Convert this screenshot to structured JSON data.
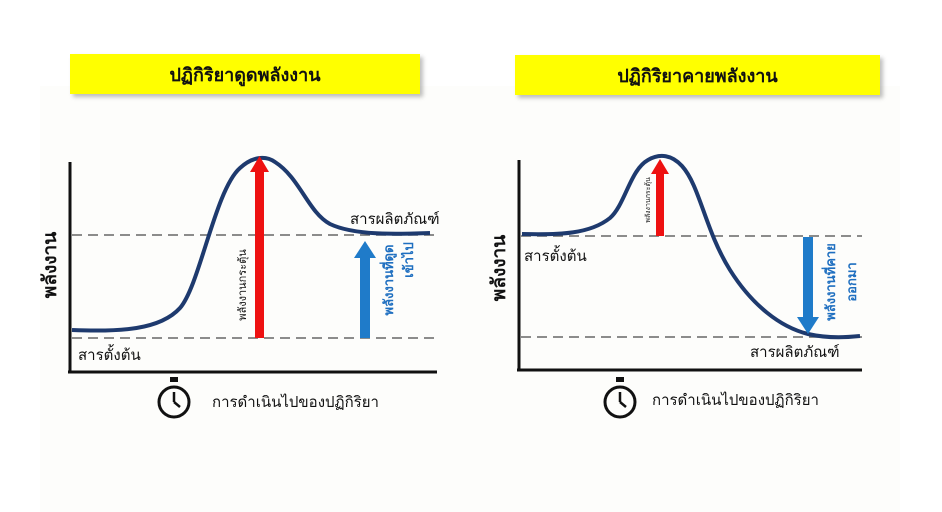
{
  "colors": {
    "title_bg": "#ffff00",
    "curve": "#1e3a6e",
    "activation_arrow": "#ee1111",
    "energy_arrow": "#1f7bc9",
    "energy_text": "#1f6fc0",
    "dashed_line": "#666666",
    "axis": "#111111"
  },
  "left_panel": {
    "title": "ปฏิกิริยาดูดพลังงาน",
    "y_axis_label": "พลังงาน",
    "reactant_label": "สารตั้งต้น",
    "product_label": "สารผลิตภัณฑ์",
    "activation_label": "พลังงานกระตุ้น",
    "energy_label_line1": "พลังงานที่ดูด",
    "energy_label_line2": "เข้าไป",
    "x_axis_label": "การดำเนินไปของปฏิกิริยา",
    "x_axis_icon": "stopwatch-icon"
  },
  "right_panel": {
    "title": "ปฏิกิริยาคายพลังงาน",
    "y_axis_label": "พลังงาน",
    "reactant_label": "สารตั้งต้น",
    "product_label": "สารผลิตภัณฑ์",
    "activation_label": "พลังงานกระตุ้น",
    "energy_label_line1": "พลังงานที่คาย",
    "energy_label_line2": "ออกมา",
    "x_axis_label": "การดำเนินไปของปฏิกิริยา",
    "x_axis_icon": "stopwatch-icon"
  }
}
